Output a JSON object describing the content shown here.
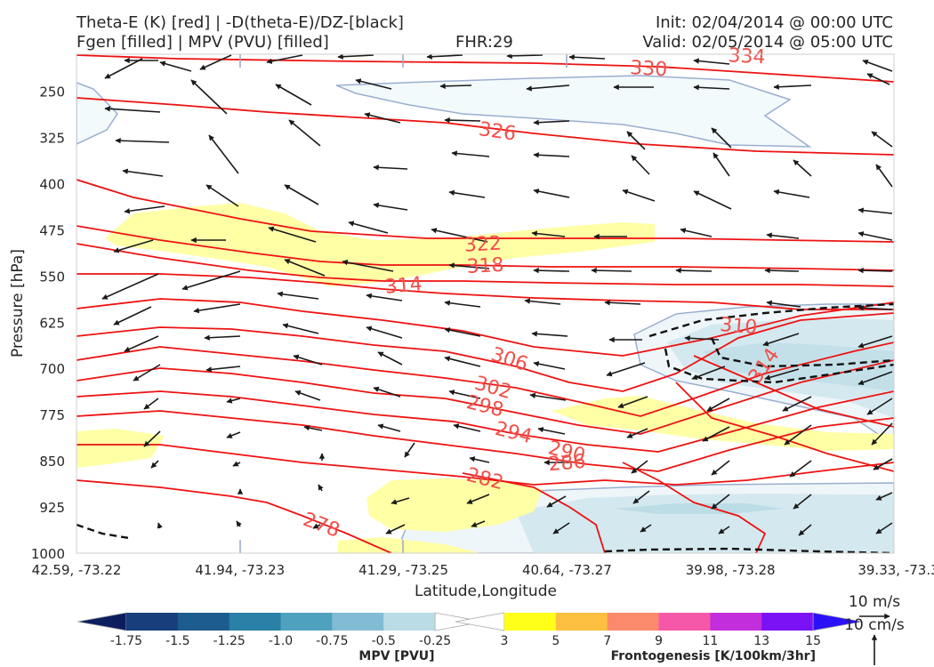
{
  "header": {
    "title_left_1": "Theta-E (K) [red] | -D(theta-E)/DZ-[black]",
    "title_left_2": "Fgen [filled] | MPV (PVU) [filled]",
    "fhr": "FHR:29",
    "init": "Init: 02/04/2014 @ 00:00 UTC",
    "valid": "Valid: 02/05/2014 @ 05:00 UTC"
  },
  "chart_data": {
    "type": "cross-section",
    "ylabel": "Pressure [hPa]",
    "xlabel": "Latitude,Longitude",
    "y_ticks": [
      "250",
      "325",
      "400",
      "475",
      "550",
      "625",
      "700",
      "775",
      "850",
      "925",
      "1000"
    ],
    "y_range": [
      190,
      1000
    ],
    "x_ticks": [
      "42.59, -73.22",
      "41.94, -73.23",
      "41.29, -73.25",
      "40.64, -73.27",
      "39.98, -73.28",
      "39.33, -73.3"
    ],
    "theta_e_labels": [
      {
        "value": "334",
        "x": 0.82,
        "p": 192,
        "rot": 3
      },
      {
        "value": "330",
        "x": 0.7,
        "p": 212,
        "rot": 3
      },
      {
        "value": "326",
        "x": 0.515,
        "p": 314,
        "rot": 8
      },
      {
        "value": "322",
        "x": 0.497,
        "p": 497,
        "rot": -3
      },
      {
        "value": "318",
        "x": 0.5,
        "p": 532,
        "rot": -3
      },
      {
        "value": "314",
        "x": 0.4,
        "p": 564,
        "rot": -5
      },
      {
        "value": "310",
        "x": 0.81,
        "p": 630,
        "rot": 5
      },
      {
        "value": "306",
        "x": 0.53,
        "p": 684,
        "rot": 18
      },
      {
        "value": "302",
        "x": 0.51,
        "p": 730,
        "rot": 16
      },
      {
        "value": "298",
        "x": 0.5,
        "p": 760,
        "rot": 14
      },
      {
        "value": "294",
        "x": 0.535,
        "p": 803,
        "rot": 14
      },
      {
        "value": "290",
        "x": 0.6,
        "p": 834,
        "rot": 14
      },
      {
        "value": "286",
        "x": 0.6,
        "p": 852,
        "rot": -5
      },
      {
        "value": "282",
        "x": 0.5,
        "p": 878,
        "rot": 14
      },
      {
        "value": "278",
        "x": 0.3,
        "p": 953,
        "rot": 20
      },
      {
        "value": "314",
        "x": 0.84,
        "p": 695,
        "rot": -55
      }
    ],
    "mpv_colorbar": {
      "label": "MPV [PVU]",
      "ticks": [
        "-1.75",
        "-1.5",
        "-1.25",
        "-1.0",
        "-0.75",
        "-0.5",
        "-0.25"
      ],
      "colors": [
        "#0c1e5e",
        "#183f7c",
        "#1d5c8e",
        "#2a80a6",
        "#4ea2c0",
        "#82bcd4",
        "#b9dce6",
        "#ffffff"
      ]
    },
    "fgen_colorbar": {
      "label": "Frontogenesis [K/100km/3hr]",
      "ticks": [
        "3",
        "5",
        "7",
        "9",
        "11",
        "13",
        "15"
      ],
      "colors": [
        "#ffffff",
        "#ffff1a",
        "#fdbf40",
        "#fb8a6c",
        "#f558a8",
        "#c22edb",
        "#7b12f6",
        "#2b11f7"
      ]
    },
    "wind_key": {
      "label1": "10 m/s",
      "label2": "10 cm/s"
    }
  }
}
